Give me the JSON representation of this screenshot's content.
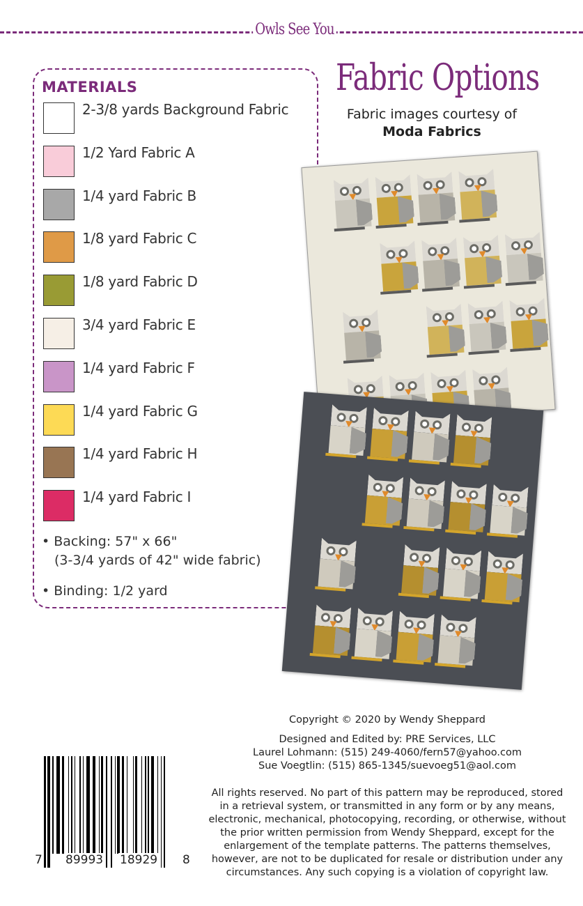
{
  "header": {
    "series_title": "Owls See You"
  },
  "materials": {
    "title": "MATERIALS",
    "items": [
      {
        "label": "2-3/8 yards Background Fabric",
        "color": "#ffffff"
      },
      {
        "label": "1/2 Yard Fabric A",
        "color": "#f9ccd9"
      },
      {
        "label": "1/4 yard Fabric B",
        "color": "#a8a8a8"
      },
      {
        "label": "1/8 yard Fabric C",
        "color": "#df9a47"
      },
      {
        "label": "1/8 yard Fabric D",
        "color": "#999b34"
      },
      {
        "label": "3/4 yard Fabric E",
        "color": "#f6efe6"
      },
      {
        "label": "1/4 yard Fabric F",
        "color": "#c995c8"
      },
      {
        "label": "1/4 yard Fabric G",
        "color": "#fdda55"
      },
      {
        "label": "1/4 yard Fabric H",
        "color": "#987553"
      },
      {
        "label": "1/4 yard Fabric I",
        "color": "#dc2c65"
      }
    ],
    "backing_line1": "• Backing: 57\" x 66\"",
    "backing_line2": "(3-3/4 yards of 42\" wide fabric)",
    "binding": "• Binding: 1/2 yard"
  },
  "fabric_options": {
    "title": "Fabric Options",
    "courtesy": "Fabric images courtesy of",
    "brand": "Moda Fabrics"
  },
  "colors": {
    "accent": "#7b2b7a",
    "quilt_light": "#ebe8dc",
    "quilt_dark": "#4b4e54"
  },
  "footer": {
    "copyright": "Copyright © 2020 by Wendy Sheppard",
    "designed": "Designed and Edited by: PRE Services, LLC",
    "contact1": "Laurel Lohmann: (515) 249-4060/fern57@yahoo.com",
    "contact2": "Sue Voegtlin: (515) 865-1345/suevoeg51@aol.com",
    "rights": "All rights reserved. No part of this pattern may be reproduced, stored in a retrieval system, or transmitted in any form or by any means, electronic, mechanical, photocopying, recording, or otherwise, without the prior written permission from Wendy Sheppard, except for the enlargement of the template patterns. The patterns themselves, however, are not to be duplicated for resale or distribution under any circumstances. Any such copying is a violation of copyright law."
  },
  "barcode": {
    "d0": "7",
    "d1": "89993",
    "d2": "18929",
    "d3": "8"
  }
}
